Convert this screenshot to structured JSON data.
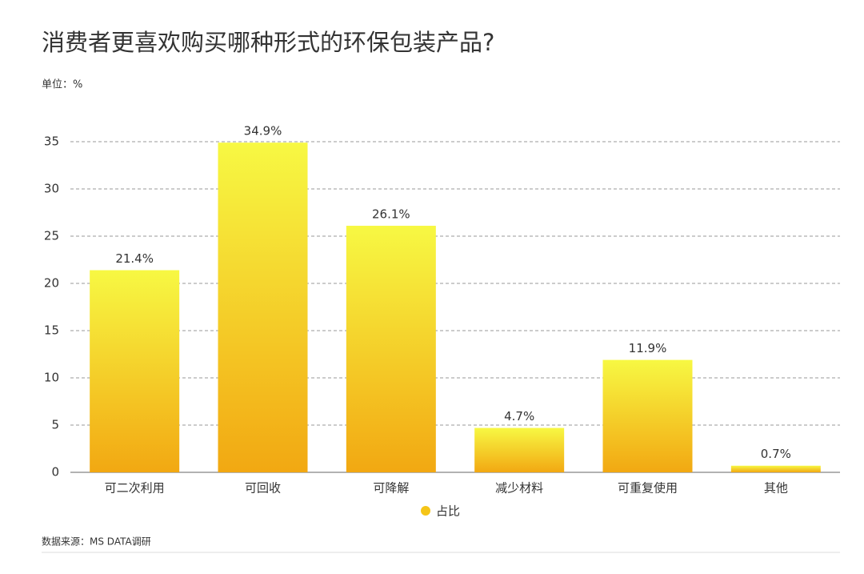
{
  "chart_data": {
    "type": "bar",
    "title": "消费者更喜欢购买哪种形式的环保包装产品?",
    "subtitle": "单位：%",
    "source": "数据来源：MS DATA调研",
    "categories": [
      "可二次利用",
      "可回收",
      "可降解",
      "减少材料",
      "可重复使用",
      "其他"
    ],
    "series": [
      {
        "name": "占比",
        "color": "#f5c518",
        "gradient": [
          "#f7f843",
          "#f2a812"
        ],
        "values": [
          21.4,
          34.9,
          26.1,
          4.7,
          11.9,
          0.7
        ],
        "value_labels": [
          "21.4%",
          "34.9%",
          "26.1%",
          "4.7%",
          "11.9%",
          "0.7%"
        ]
      }
    ],
    "ylim": [
      0,
      35
    ],
    "yticks": [
      0,
      5,
      10,
      15,
      20,
      25,
      30,
      35
    ],
    "grid": true
  }
}
